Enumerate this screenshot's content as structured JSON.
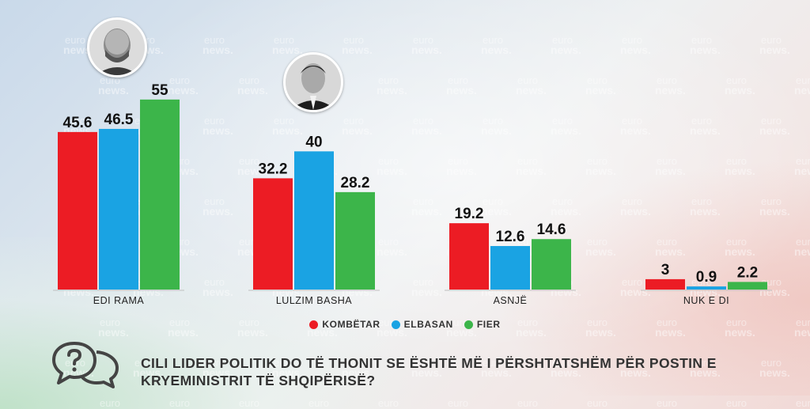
{
  "chart_data": {
    "type": "bar",
    "categories": [
      "EDI RAMA",
      "LULZIM BASHA",
      "ASNJË",
      "NUK E DI"
    ],
    "series": [
      {
        "name": "KOMBËTAR",
        "color": "#ec1c24",
        "values": [
          45.6,
          32.2,
          19.2,
          3
        ]
      },
      {
        "name": "ELBASAN",
        "color": "#1aa3e3",
        "values": [
          46.5,
          40,
          12.6,
          0.9
        ]
      },
      {
        "name": "FIER",
        "color": "#3cb54a",
        "values": [
          55,
          28.2,
          14.6,
          2.2
        ]
      }
    ],
    "value_labels": [
      [
        "45.6",
        "32.2",
        "19.2",
        "3"
      ],
      [
        "46.5",
        "40",
        "12.6",
        "0.9"
      ],
      [
        "55",
        "28.2",
        "14.6",
        "2.2"
      ]
    ],
    "ylim": [
      0,
      60
    ],
    "legend_position": "bottom-center",
    "grid": false,
    "title": "CILI LIDER POLITIK DO TË THONIT SE ËSHTË MË I PËRSHTATSHËM PËR POSTIN E KRYEMINISTRIT TË SHQIPËRISË?"
  },
  "legend": {
    "items": [
      {
        "label": "KOMBËTAR",
        "color": "#ec1c24"
      },
      {
        "label": "ELBASAN",
        "color": "#1aa3e3"
      },
      {
        "label": "FIER",
        "color": "#3cb54a"
      }
    ]
  },
  "question": {
    "line1": "CILI LIDER POLITIK DO TË THONIT SE ËSHTË MË I PËRSHTATSHËM PËR POSTIN E",
    "line2": "KRYEMINISTRIT TË SHQIPËRISË?"
  },
  "watermark": {
    "line1": "euro",
    "line2": "news."
  },
  "icons": [
    "question-chat-icon",
    "portrait-edi-rama",
    "portrait-lulzim-basha"
  ]
}
